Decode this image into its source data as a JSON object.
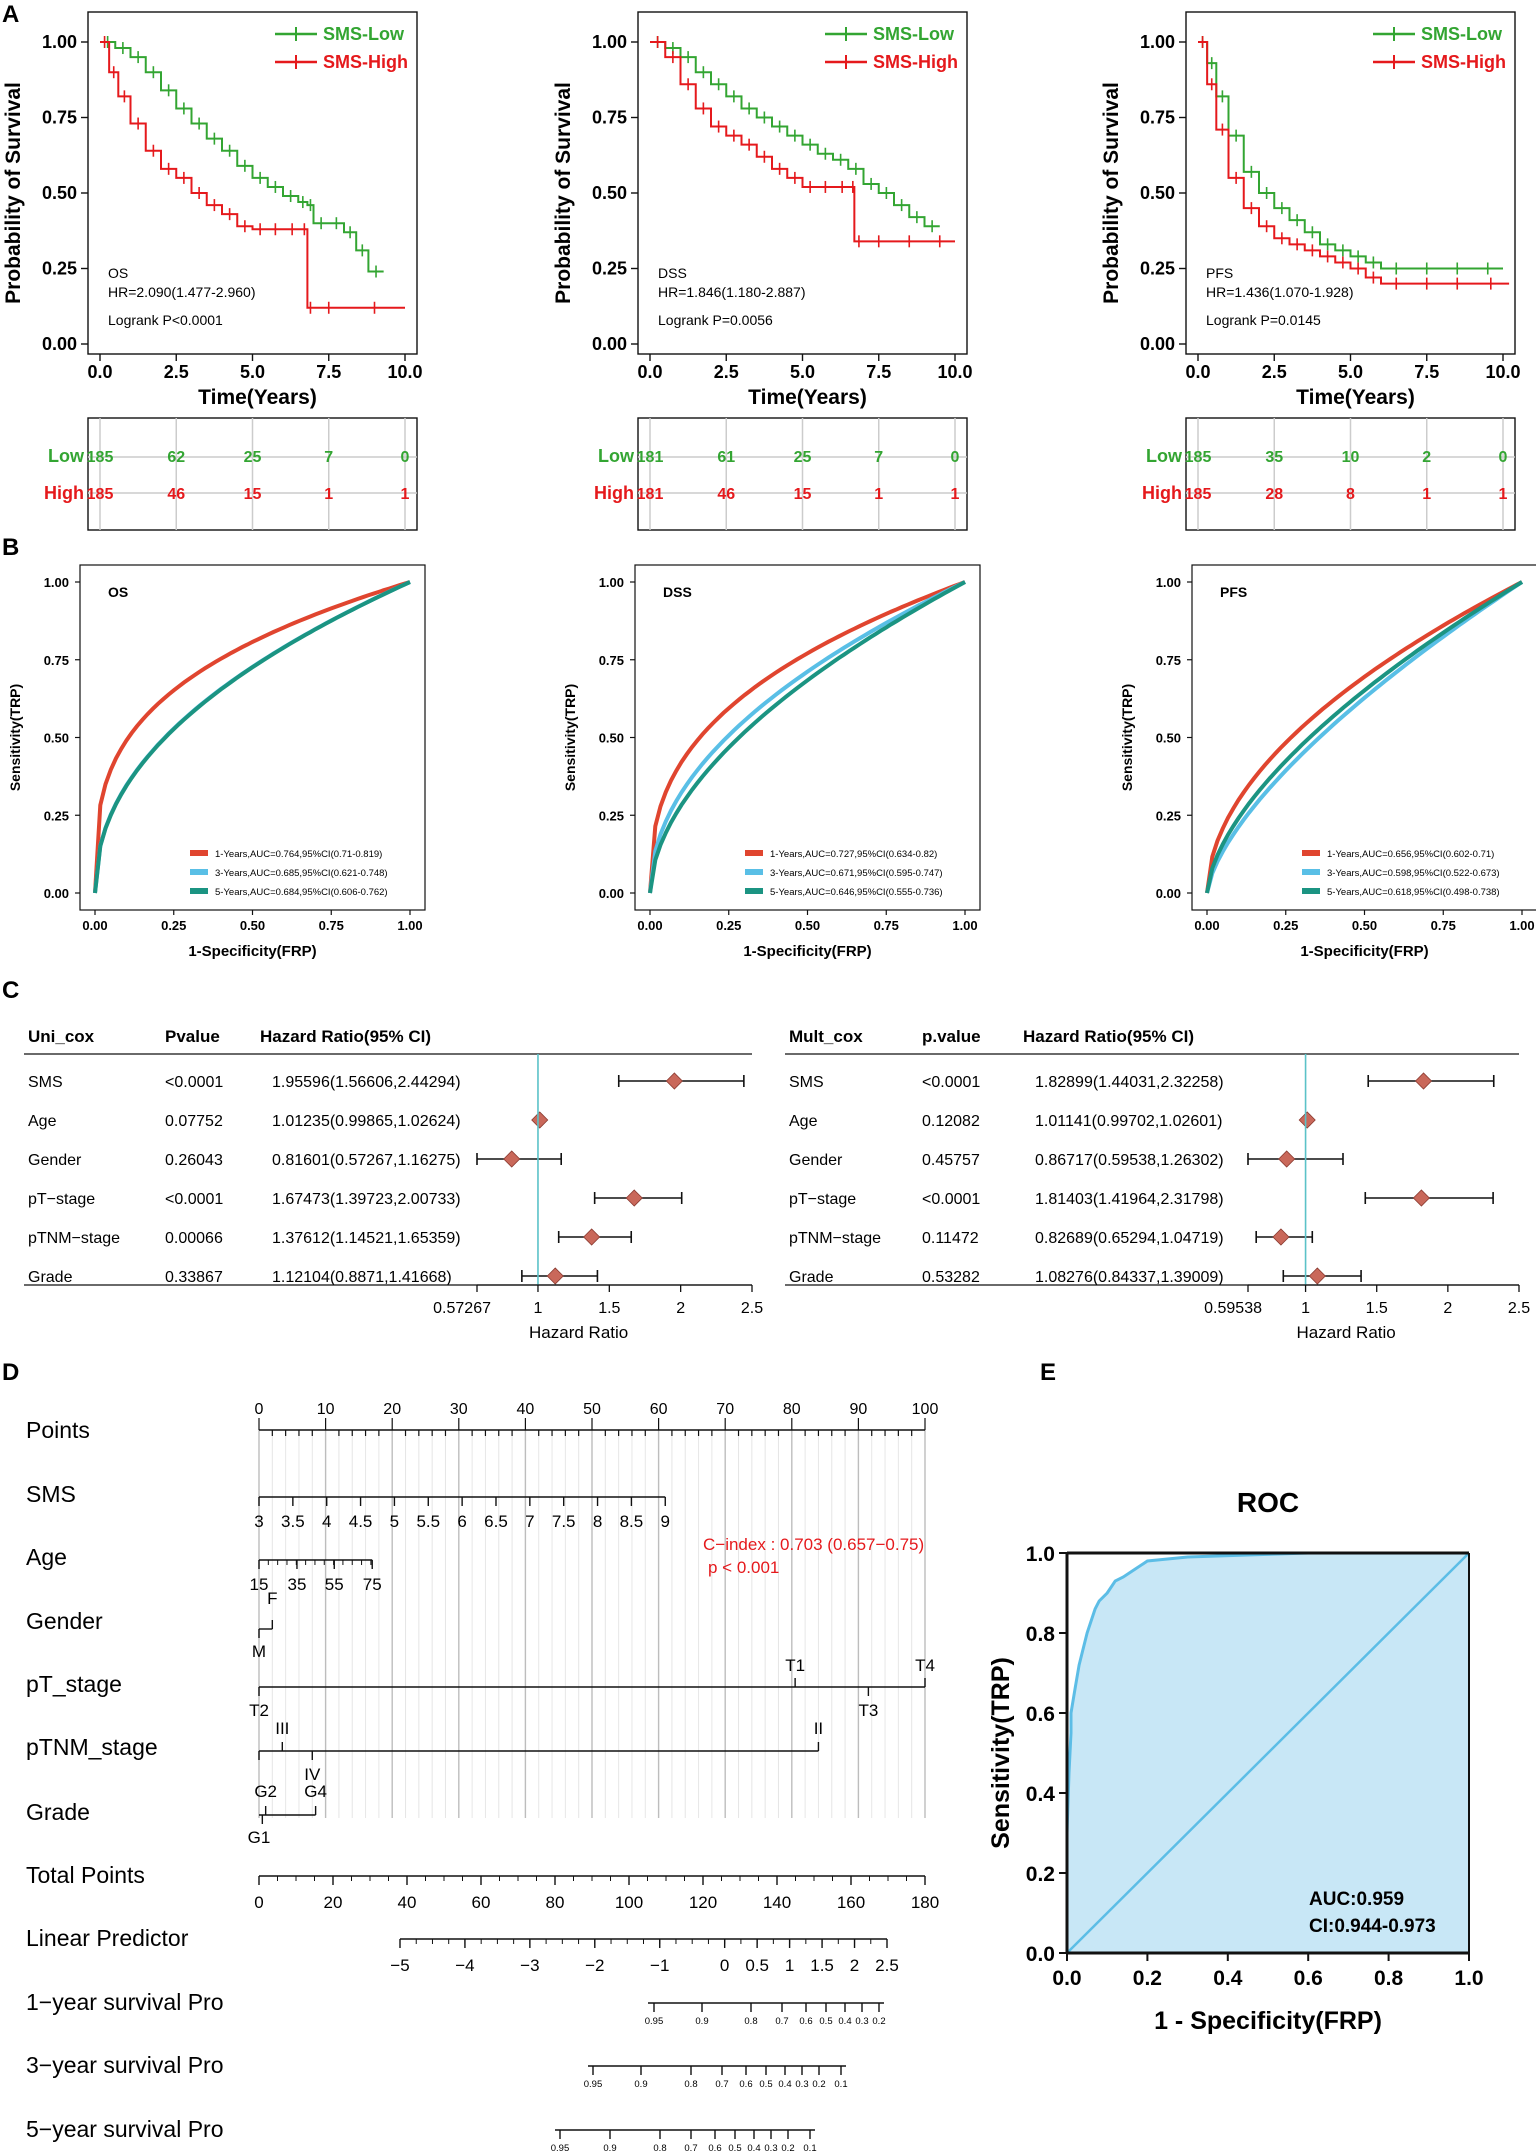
{
  "panel_labels": {
    "A": "A",
    "B": "B",
    "C": "C",
    "D": "D",
    "E": "E"
  },
  "colors": {
    "low": "#33a532",
    "high": "#e5191c",
    "roc1": "#e0452f",
    "roc3": "#59bfe6",
    "roc5": "#1b9482",
    "forest_line": "#5bc2c8",
    "diamond": "#c9685a",
    "roc_fill": "#c8e7f6",
    "roc_line": "#5cbde6"
  },
  "km_axis": {
    "ylabel": "Probability of Survival",
    "xlabel": "Time(Years)",
    "yticks": [
      "0.00",
      "0.25",
      "0.50",
      "0.75",
      "1.00"
    ],
    "xticks": [
      "0.0",
      "2.5",
      "5.0",
      "7.5",
      "10.0"
    ],
    "legend_low": "SMS-Low",
    "legend_high": "SMS-High",
    "risk_low": "Low",
    "risk_high": "High"
  },
  "roc_axis": {
    "ylabel": "Sensitivity(TRP)",
    "xlabel": "1-Specificity(FRP)",
    "yticks": [
      "0.00",
      "0.25",
      "0.50",
      "0.75",
      "1.00"
    ],
    "xticks": [
      "0.00",
      "0.25",
      "0.50",
      "0.75",
      "1.00"
    ]
  },
  "chart_data": [
    {
      "type": "line",
      "panel": "A",
      "endpoint": "OS",
      "hr": "HR=2.090(1.477-2.960)",
      "logrank": "Logrank P<0.0001",
      "xlim": [
        0,
        10
      ],
      "ylim": [
        0,
        1
      ],
      "series": [
        {
          "name": "SMS-Low",
          "x": [
            0,
            0.5,
            1,
            1.5,
            2,
            2.5,
            3,
            3.5,
            4,
            4.5,
            5,
            5.5,
            6,
            6.5,
            6.8,
            7,
            7.5,
            8,
            8.4,
            8.8,
            9.3
          ],
          "y": [
            1,
            0.98,
            0.95,
            0.9,
            0.84,
            0.78,
            0.73,
            0.68,
            0.64,
            0.59,
            0.55,
            0.52,
            0.49,
            0.47,
            0.46,
            0.4,
            0.4,
            0.37,
            0.31,
            0.24,
            0.24
          ]
        },
        {
          "name": "SMS-High",
          "x": [
            0,
            0.3,
            0.6,
            1,
            1.5,
            2,
            2.5,
            3,
            3.5,
            4,
            4.5,
            5,
            5.5,
            6,
            6.6,
            6.8,
            7,
            8,
            10
          ],
          "y": [
            1,
            0.9,
            0.82,
            0.73,
            0.64,
            0.58,
            0.55,
            0.5,
            0.46,
            0.43,
            0.39,
            0.38,
            0.38,
            0.38,
            0.38,
            0.12,
            0.12,
            0.12,
            0.12
          ]
        }
      ],
      "risk": {
        "low": [
          "185",
          "62",
          "25",
          "7",
          "0"
        ],
        "high": [
          "185",
          "46",
          "15",
          "1",
          "1"
        ]
      }
    },
    {
      "type": "line",
      "panel": "A",
      "endpoint": "DSS",
      "hr": "HR=1.846(1.180-2.887)",
      "logrank": "Logrank P=0.0056",
      "xlim": [
        0,
        10
      ],
      "ylim": [
        0,
        1
      ],
      "series": [
        {
          "name": "SMS-Low",
          "x": [
            0,
            0.5,
            1,
            1.5,
            2,
            2.5,
            3,
            3.5,
            4,
            4.5,
            5,
            5.5,
            6,
            6.5,
            7,
            7.5,
            8,
            8.5,
            9,
            9.5
          ],
          "y": [
            1,
            0.98,
            0.95,
            0.9,
            0.86,
            0.82,
            0.78,
            0.75,
            0.72,
            0.69,
            0.66,
            0.63,
            0.61,
            0.58,
            0.53,
            0.5,
            0.46,
            0.42,
            0.39,
            0.39
          ]
        },
        {
          "name": "SMS-High",
          "x": [
            0,
            0.5,
            1,
            1.5,
            2,
            2.5,
            3,
            3.5,
            4,
            4.5,
            5,
            5.5,
            6,
            6.6,
            6.7,
            7,
            8,
            9,
            10
          ],
          "y": [
            1,
            0.95,
            0.86,
            0.78,
            0.72,
            0.69,
            0.66,
            0.62,
            0.58,
            0.55,
            0.52,
            0.52,
            0.52,
            0.52,
            0.34,
            0.34,
            0.34,
            0.34,
            0.34
          ]
        }
      ],
      "risk": {
        "low": [
          "181",
          "61",
          "25",
          "7",
          "0"
        ],
        "high": [
          "181",
          "46",
          "15",
          "1",
          "1"
        ]
      }
    },
    {
      "type": "line",
      "panel": "A",
      "endpoint": "PFS",
      "hr": "HR=1.436(1.070-1.928)",
      "logrank": "Logrank P=0.0145",
      "xlim": [
        0,
        10
      ],
      "ylim": [
        0,
        1
      ],
      "series": [
        {
          "name": "SMS-Low",
          "x": [
            0,
            0.3,
            0.6,
            1,
            1.5,
            2,
            2.5,
            3,
            3.5,
            4,
            4.5,
            5,
            5.5,
            6,
            7,
            8,
            9,
            10
          ],
          "y": [
            1,
            0.93,
            0.82,
            0.69,
            0.57,
            0.5,
            0.45,
            0.41,
            0.37,
            0.33,
            0.31,
            0.29,
            0.27,
            0.25,
            0.25,
            0.25,
            0.25,
            0.25
          ]
        },
        {
          "name": "SMS-High",
          "x": [
            0,
            0.3,
            0.6,
            1,
            1.5,
            2,
            2.5,
            3,
            3.5,
            4,
            4.5,
            5,
            5.5,
            6,
            7,
            8,
            9,
            10.2
          ],
          "y": [
            1,
            0.86,
            0.71,
            0.55,
            0.45,
            0.39,
            0.35,
            0.33,
            0.31,
            0.29,
            0.27,
            0.25,
            0.22,
            0.2,
            0.2,
            0.2,
            0.2,
            0.2
          ]
        }
      ],
      "risk": {
        "low": [
          "185",
          "35",
          "10",
          "2",
          "0"
        ],
        "high": [
          "185",
          "28",
          "8",
          "1",
          "1"
        ]
      }
    },
    {
      "type": "line",
      "panel": "B",
      "endpoint": "OS",
      "xlim": [
        0,
        1
      ],
      "ylim": [
        0,
        1
      ],
      "series": [
        {
          "name": "1-Years,AUC=0.764,95%CI(0.71-0.819)",
          "auc": 0.764
        },
        {
          "name": "3-Years,AUC=0.685,95%CI(0.621-0.748)",
          "auc": 0.685
        },
        {
          "name": "5-Years,AUC=0.684,95%CI(0.606-0.762)",
          "auc": 0.684
        }
      ]
    },
    {
      "type": "line",
      "panel": "B",
      "endpoint": "DSS",
      "xlim": [
        0,
        1
      ],
      "ylim": [
        0,
        1
      ],
      "series": [
        {
          "name": "1-Years,AUC=0.727,95%CI(0.634-0.82)",
          "auc": 0.727
        },
        {
          "name": "3-Years,AUC=0.671,95%CI(0.595-0.747)",
          "auc": 0.671
        },
        {
          "name": "5-Years,AUC=0.646,95%CI(0.555-0.736)",
          "auc": 0.646
        }
      ]
    },
    {
      "type": "line",
      "panel": "B",
      "endpoint": "PFS",
      "xlim": [
        0,
        1
      ],
      "ylim": [
        0,
        1
      ],
      "series": [
        {
          "name": "1-Years,AUC=0.656,95%CI(0.602-0.71)",
          "auc": 0.656
        },
        {
          "name": "3-Years,AUC=0.598,95%CI(0.522-0.673)",
          "auc": 0.598
        },
        {
          "name": "5-Years,AUC=0.618,95%CI(0.498-0.738)",
          "auc": 0.618
        }
      ]
    },
    {
      "type": "table",
      "panel": "C",
      "title": "Uni_cox",
      "headers": [
        "Uni_cox",
        "Pvalue",
        "Hazard Ratio(95% CI)"
      ],
      "rows": [
        {
          "var": "SMS",
          "p": "<0.0001",
          "hr_text": "1.95596(1.56606,2.44294)",
          "hr": 1.95596,
          "lo": 1.56606,
          "hi": 2.44294
        },
        {
          "var": "Age",
          "p": "0.07752",
          "hr_text": "1.01235(0.99865,1.02624)",
          "hr": 1.01235,
          "lo": 0.99865,
          "hi": 1.02624
        },
        {
          "var": "Gender",
          "p": "0.26043",
          "hr_text": "0.81601(0.57267,1.16275)",
          "hr": 0.81601,
          "lo": 0.57267,
          "hi": 1.16275
        },
        {
          "var": "pT−stage",
          "p": "<0.0001",
          "hr_text": "1.67473(1.39723,2.00733)",
          "hr": 1.67473,
          "lo": 1.39723,
          "hi": 2.00733
        },
        {
          "var": "pTNM−stage",
          "p": "0.00066",
          "hr_text": "1.37612(1.14521,1.65359)",
          "hr": 1.37612,
          "lo": 1.14521,
          "hi": 1.65359
        },
        {
          "var": "Grade",
          "p": "0.33867",
          "hr_text": "1.12104(0.8871,1.41668)",
          "hr": 1.12104,
          "lo": 0.8871,
          "hi": 1.41668
        }
      ],
      "xlim": [
        0.57267,
        2.5
      ],
      "xticks": [
        "0.57267",
        "1",
        "1.5",
        "2",
        "2.5"
      ],
      "xlabel": "Hazard Ratio"
    },
    {
      "type": "table",
      "panel": "C",
      "title": "Mult_cox",
      "headers": [
        "Mult_cox",
        "p.value",
        "Hazard Ratio(95% CI)"
      ],
      "rows": [
        {
          "var": "SMS",
          "p": "<0.0001",
          "hr_text": "1.82899(1.44031,2.32258)",
          "hr": 1.82899,
          "lo": 1.44031,
          "hi": 2.32258
        },
        {
          "var": "Age",
          "p": "0.12082",
          "hr_text": "1.01141(0.99702,1.02601)",
          "hr": 1.01141,
          "lo": 0.99702,
          "hi": 1.02601
        },
        {
          "var": "Gender",
          "p": "0.45757",
          "hr_text": "0.86717(0.59538,1.26302)",
          "hr": 0.86717,
          "lo": 0.59538,
          "hi": 1.26302
        },
        {
          "var": "pT−stage",
          "p": "<0.0001",
          "hr_text": "1.81403(1.41964,2.31798)",
          "hr": 1.81403,
          "lo": 1.41964,
          "hi": 2.31798
        },
        {
          "var": "pTNM−stage",
          "p": "0.11472",
          "hr_text": "0.82689(0.65294,1.04719)",
          "hr": 0.82689,
          "lo": 0.65294,
          "hi": 1.04719
        },
        {
          "var": "Grade",
          "p": "0.53282",
          "hr_text": "1.08276(0.84337,1.39009)",
          "hr": 1.08276,
          "lo": 0.84337,
          "hi": 1.39009
        }
      ],
      "xlim": [
        0.59538,
        2.5
      ],
      "xticks": [
        "0.59538",
        "1",
        "1.5",
        "2",
        "2.5"
      ],
      "xlabel": "Hazard Ratio"
    },
    {
      "type": "table",
      "panel": "D",
      "title": "Nomogram",
      "rows": [
        "Points",
        "SMS",
        "Age",
        "Gender",
        "pT_stage",
        "pTNM_stage",
        "Grade",
        "Total Points",
        "Linear Predictor",
        "1−year survival Pro",
        "3−year survival Pro",
        "5−year survival Pro"
      ],
      "points_ticks": [
        "0",
        "10",
        "20",
        "30",
        "40",
        "50",
        "60",
        "70",
        "80",
        "90",
        "100"
      ],
      "sms_ticks": [
        "3",
        "3.5",
        "4",
        "4.5",
        "5",
        "5.5",
        "6",
        "6.5",
        "7",
        "7.5",
        "8",
        "8.5",
        "9"
      ],
      "age_ticks": [
        "15",
        "35",
        "55",
        "75"
      ],
      "gender": {
        "F": "F",
        "M": "M"
      },
      "pt": {
        "T1": "T1",
        "T4": "T4",
        "T2": "T2",
        "T3": "T3"
      },
      "ptnm": {
        "III": "III",
        "II": "II",
        "IV": "IV"
      },
      "grade": {
        "G2": "G2",
        "G4": "G4",
        "G1": "G1"
      },
      "total_ticks": [
        "0",
        "20",
        "40",
        "60",
        "80",
        "100",
        "120",
        "140",
        "160",
        "180"
      ],
      "lp_ticks": [
        "−5",
        "−4",
        "−3",
        "−2",
        "−1",
        "0",
        "0.5",
        "1",
        "1.5",
        "2",
        "2.5"
      ],
      "surv1_ticks": [
        "0.95",
        "0.9",
        "0.8",
        "0.7",
        "0.6",
        "0.5",
        "0.4",
        "0.3",
        "0.2"
      ],
      "surv3_ticks": [
        "0.95",
        "0.9",
        "0.8",
        "0.7",
        "0.6",
        "0.5",
        "0.4",
        "0.3",
        "0.2",
        "0.1"
      ],
      "surv5_ticks": [
        "0.95",
        "0.9",
        "0.8",
        "0.7",
        "0.6",
        "0.5",
        "0.4",
        "0.3",
        "0.2",
        "0.1"
      ],
      "cindex": "C−index : 0.703 (0.657−0.75)",
      "pval": "p < 0.001"
    },
    {
      "type": "line",
      "panel": "E",
      "title": "ROC",
      "xlabel": "1 - Specificity(FRP)",
      "ylabel": "Sensitivity(TRP)",
      "xlim": [
        0,
        1
      ],
      "ylim": [
        0,
        1
      ],
      "xticks": [
        "0.0",
        "0.2",
        "0.4",
        "0.6",
        "0.8",
        "1.0"
      ],
      "yticks": [
        "0.0",
        "0.2",
        "0.4",
        "0.6",
        "0.8",
        "1.0"
      ],
      "auc": "AUC:0.959",
      "ci": "CI:0.944-0.973",
      "x": [
        0,
        0,
        0.005,
        0.01,
        0.01,
        0.02,
        0.03,
        0.04,
        0.05,
        0.06,
        0.07,
        0.08,
        0.1,
        0.12,
        0.14,
        0.17,
        0.2,
        0.25,
        0.3,
        0.45,
        0.6,
        0.8,
        1
      ],
      "y": [
        0,
        0.3,
        0.45,
        0.55,
        0.6,
        0.66,
        0.72,
        0.76,
        0.8,
        0.83,
        0.86,
        0.88,
        0.9,
        0.93,
        0.94,
        0.96,
        0.98,
        0.985,
        0.99,
        0.995,
        1,
        1,
        1
      ]
    }
  ]
}
